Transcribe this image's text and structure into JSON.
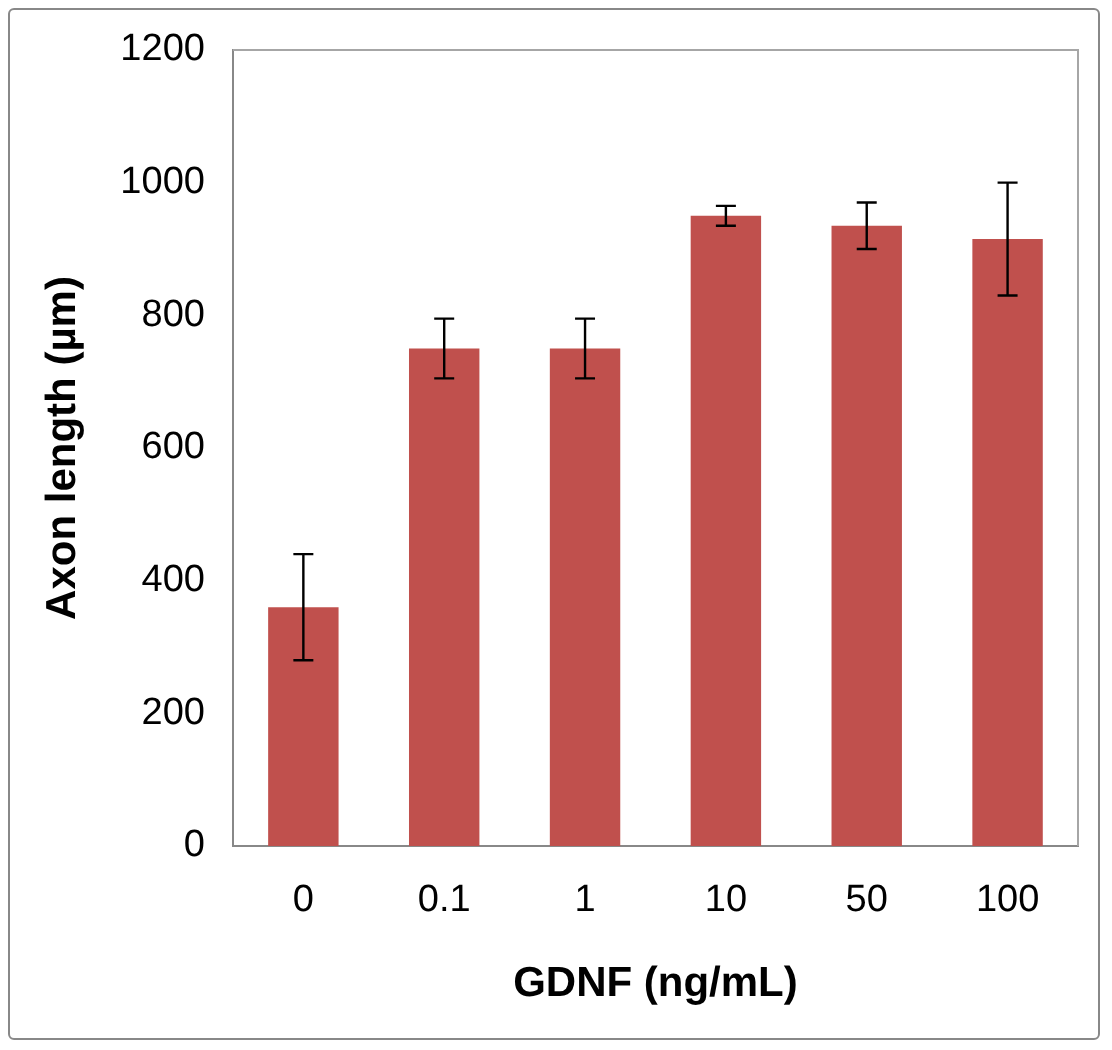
{
  "chart_data": {
    "type": "bar",
    "xlabel": "GDNF (ng/mL)",
    "ylabel": "Axon length (µm)",
    "categories": [
      "0",
      "0.1",
      "1",
      "10",
      "50",
      "100"
    ],
    "values": [
      360,
      750,
      750,
      950,
      935,
      915
    ],
    "errors": [
      80,
      45,
      45,
      15,
      35,
      85
    ],
    "color": "#c0504d",
    "ylim": [
      0,
      1200
    ],
    "yticks": [
      0,
      200,
      400,
      600,
      800,
      1000,
      1200
    ],
    "grid": false,
    "legend": false
  }
}
